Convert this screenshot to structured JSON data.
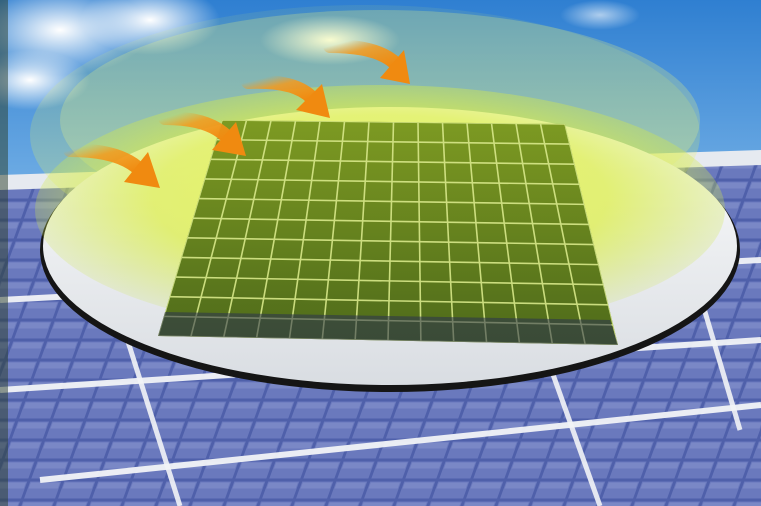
{
  "scene": {
    "sky_top": "#2f7fd1",
    "sky_bottom": "#cfe6f7",
    "cloud": "#ffffff",
    "panel_frame": "#e9edf2",
    "panel_cell": "#4d5ea8",
    "panel_cell_light": "#8d9bd1",
    "wafer_rim": "#1c1c1c",
    "wafer_surface": "#f4f5f6",
    "chip_cell": "#6e8a1c",
    "chip_line": "#d8e88a",
    "glow": "#e8f55a",
    "arrow": "#f39a1e",
    "arrow_count": 4
  }
}
